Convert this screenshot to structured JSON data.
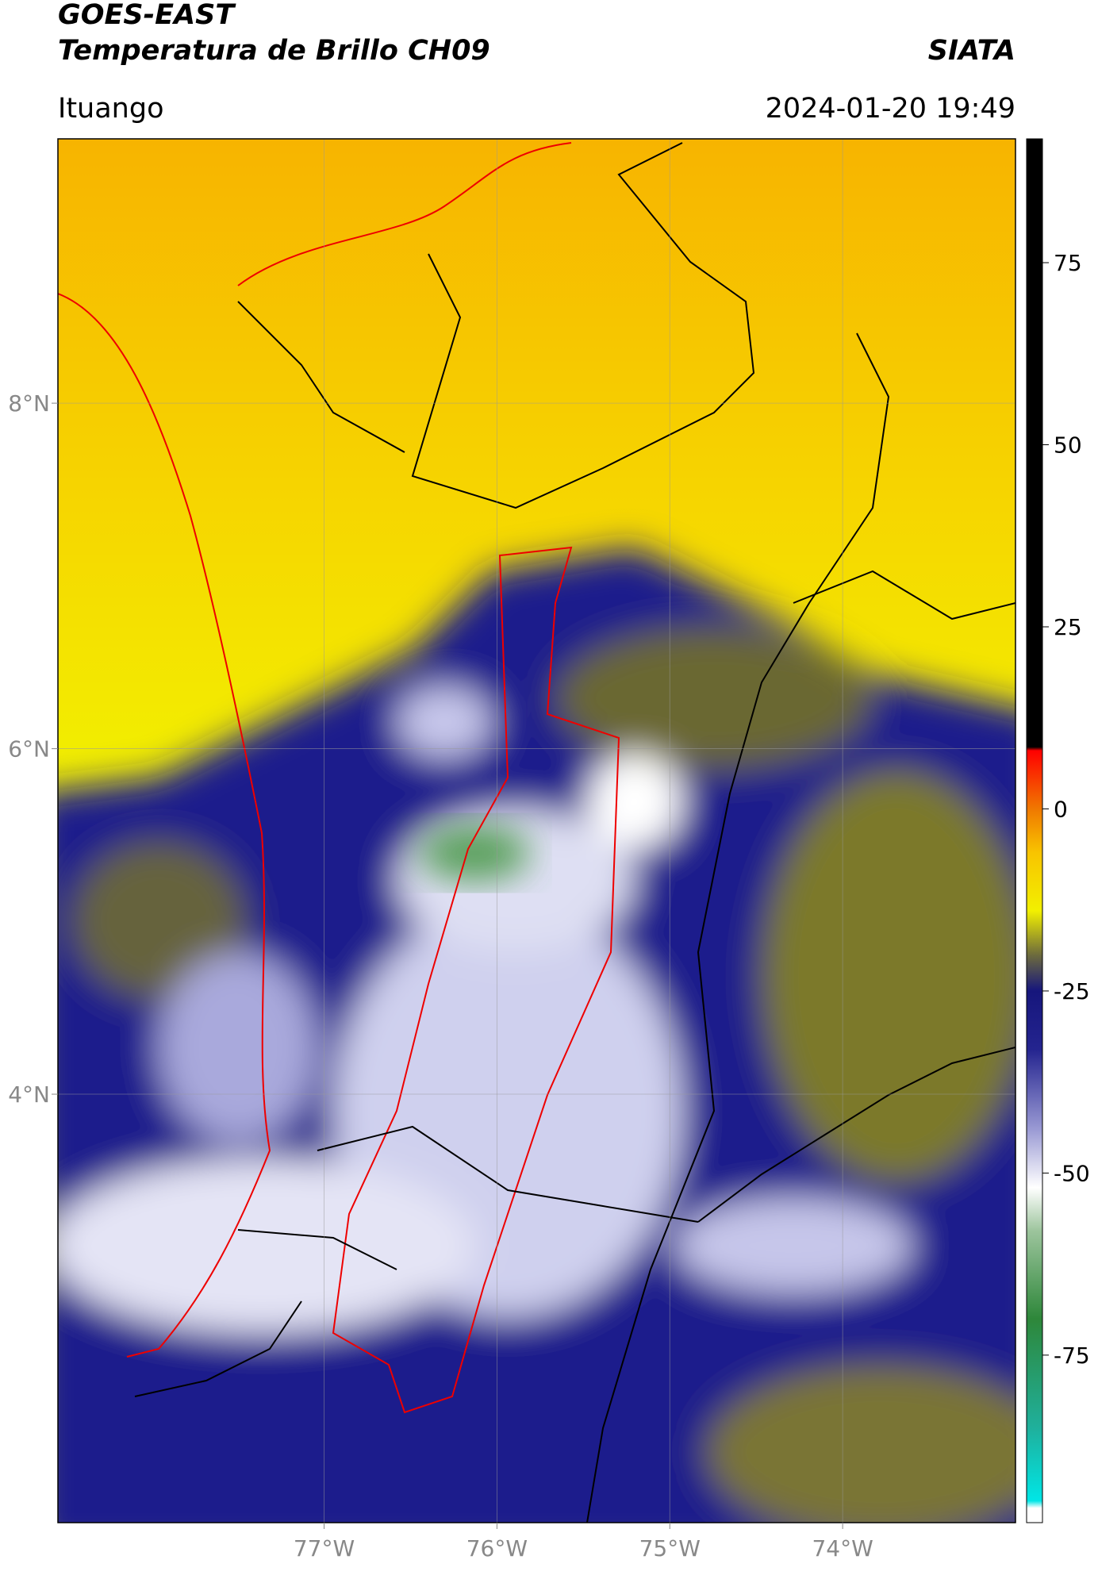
{
  "chart_data": {
    "type": "map",
    "title": "GOES-EAST",
    "subtitle": "Temperatura de Brillo CH09",
    "source": "SIATA",
    "location": "Ituango",
    "datetime": "2024-01-20 19:49",
    "xlim": [
      -78.54,
      -73.0
    ],
    "ylim": [
      1.52,
      9.53
    ],
    "xticks": [
      {
        "value": -77,
        "label": "77°W"
      },
      {
        "value": -76,
        "label": "76°W"
      },
      {
        "value": -75,
        "label": "75°W"
      },
      {
        "value": -74,
        "label": "74°W"
      }
    ],
    "yticks": [
      {
        "value": 4,
        "label": "4°N"
      },
      {
        "value": 6,
        "label": "6°N"
      },
      {
        "value": 8,
        "label": "8°N"
      }
    ],
    "grid": true,
    "colorbar": {
      "clim": [
        -98,
        92
      ],
      "ticks": [
        -75,
        -50,
        -25,
        0,
        25,
        50,
        75
      ],
      "colormap": [
        {
          "value": -98,
          "color": "#ffffff"
        },
        {
          "value": -96,
          "color": "#ffffff"
        },
        {
          "value": -95,
          "color": "#00e6e6"
        },
        {
          "value": -85,
          "color": "#1fb09c"
        },
        {
          "value": -70,
          "color": "#2e873a"
        },
        {
          "value": -58,
          "color": "#9cc49c"
        },
        {
          "value": -52,
          "color": "#ffffff"
        },
        {
          "value": -44,
          "color": "#9a9ad4"
        },
        {
          "value": -33,
          "color": "#24248f"
        },
        {
          "value": -25,
          "color": "#16167c"
        },
        {
          "value": -20,
          "color": "#6e6c3c"
        },
        {
          "value": -14,
          "color": "#f2f000"
        },
        {
          "value": -6,
          "color": "#f8c400"
        },
        {
          "value": 0,
          "color": "#f07800"
        },
        {
          "value": 8,
          "color": "#ff0000"
        },
        {
          "value": 8.5,
          "color": "#000000"
        },
        {
          "value": 92,
          "color": "#000000"
        }
      ]
    }
  }
}
